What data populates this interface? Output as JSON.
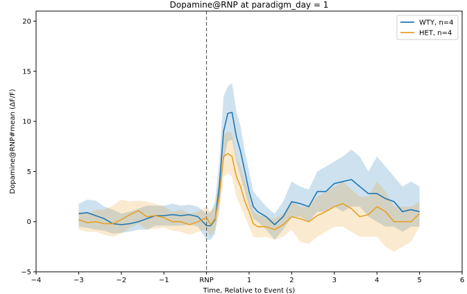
{
  "chart_data": {
    "type": "line",
    "title": "Dopamine@RNP at paradigm_day = 1",
    "xlabel": "Time, Relative to Event (s)",
    "ylabel": "Dopamine@RNP#mean (ΔF/F)",
    "xlim": [
      -4,
      6
    ],
    "ylim": [
      -5,
      21
    ],
    "xticks": [
      {
        "value": -4,
        "label": "−4"
      },
      {
        "value": -3,
        "label": "−3"
      },
      {
        "value": -2,
        "label": "−2"
      },
      {
        "value": -1,
        "label": "−1"
      },
      {
        "value": 0,
        "label": "RNP"
      },
      {
        "value": 1,
        "label": "1"
      },
      {
        "value": 2,
        "label": "2"
      },
      {
        "value": 3,
        "label": "3"
      },
      {
        "value": 4,
        "label": "4"
      },
      {
        "value": 5,
        "label": "5"
      },
      {
        "value": 6,
        "label": "6"
      }
    ],
    "yticks": [
      {
        "value": -5,
        "label": "−5"
      },
      {
        "value": 0,
        "label": "0"
      },
      {
        "value": 5,
        "label": "5"
      },
      {
        "value": 10,
        "label": "10"
      },
      {
        "value": 15,
        "label": "15"
      },
      {
        "value": 20,
        "label": "20"
      }
    ],
    "event_line": {
      "x": 0,
      "style": "dashed"
    },
    "grid": false,
    "legend_position": "top-right",
    "series": [
      {
        "name": "WTY, n=4",
        "color": "#1f77b4",
        "x": [
          -3.0,
          -2.8,
          -2.6,
          -2.4,
          -2.2,
          -2.0,
          -1.8,
          -1.6,
          -1.4,
          -1.2,
          -1.0,
          -0.8,
          -0.6,
          -0.4,
          -0.2,
          0.0,
          0.1,
          0.2,
          0.3,
          0.4,
          0.5,
          0.6,
          0.7,
          0.8,
          0.9,
          1.0,
          1.1,
          1.2,
          1.4,
          1.6,
          1.8,
          2.0,
          2.2,
          2.4,
          2.6,
          2.8,
          3.0,
          3.2,
          3.4,
          3.6,
          3.8,
          4.0,
          4.2,
          4.4,
          4.6,
          4.8,
          5.0
        ],
        "y": [
          0.8,
          0.9,
          0.6,
          0.3,
          -0.2,
          -0.3,
          -0.2,
          0.0,
          0.3,
          0.6,
          0.6,
          0.7,
          0.6,
          0.7,
          0.5,
          -0.4,
          -0.4,
          0.2,
          3.5,
          9.0,
          10.8,
          10.9,
          8.5,
          7.0,
          5.0,
          3.0,
          1.5,
          1.0,
          0.5,
          -0.3,
          0.5,
          2.0,
          1.8,
          1.5,
          3.0,
          3.0,
          3.8,
          4.0,
          4.2,
          3.5,
          2.8,
          2.8,
          2.3,
          2.0,
          1.0,
          1.2,
          1.0
        ],
        "ci_upper": [
          1.8,
          2.2,
          2.1,
          1.5,
          1.2,
          0.8,
          1.0,
          1.3,
          1.6,
          1.6,
          1.6,
          1.8,
          1.6,
          1.7,
          1.5,
          0.8,
          1.0,
          2.0,
          6.0,
          12.5,
          13.5,
          13.8,
          11.0,
          9.5,
          7.0,
          5.0,
          3.0,
          2.5,
          1.5,
          0.8,
          2.0,
          4.0,
          3.5,
          3.2,
          5.0,
          5.5,
          6.0,
          6.5,
          7.2,
          6.5,
          5.0,
          6.5,
          5.5,
          4.5,
          3.5,
          4.0,
          3.5
        ],
        "ci_lower": [
          -0.5,
          -0.6,
          -0.8,
          -0.9,
          -1.2,
          -1.1,
          -1.0,
          -0.8,
          -0.8,
          -0.4,
          -0.4,
          -0.4,
          -0.4,
          -0.3,
          -0.5,
          -1.8,
          -1.8,
          -1.2,
          1.5,
          6.0,
          8.0,
          8.2,
          6.0,
          4.5,
          3.0,
          1.5,
          0.3,
          0.0,
          -0.8,
          -1.8,
          -0.8,
          0.5,
          0.5,
          0.0,
          1.0,
          1.0,
          1.5,
          1.0,
          1.5,
          1.5,
          0.5,
          0.0,
          -0.5,
          -0.5,
          -1.0,
          -0.5,
          -0.5
        ]
      },
      {
        "name": "HET, n=4",
        "color": "#e6a025",
        "x": [
          -3.0,
          -2.8,
          -2.6,
          -2.4,
          -2.2,
          -2.0,
          -1.8,
          -1.6,
          -1.4,
          -1.2,
          -1.0,
          -0.8,
          -0.6,
          -0.4,
          -0.2,
          0.0,
          0.1,
          0.2,
          0.3,
          0.4,
          0.5,
          0.6,
          0.7,
          0.8,
          0.9,
          1.0,
          1.1,
          1.2,
          1.4,
          1.6,
          1.8,
          2.0,
          2.2,
          2.4,
          2.6,
          2.8,
          3.0,
          3.2,
          3.4,
          3.6,
          3.8,
          4.0,
          4.2,
          4.4,
          4.6,
          4.8,
          5.0
        ],
        "y": [
          0.2,
          -0.1,
          0.0,
          -0.2,
          -0.2,
          0.2,
          0.7,
          1.1,
          0.5,
          0.6,
          0.4,
          0.0,
          0.0,
          -0.3,
          0.0,
          0.4,
          -0.3,
          0.3,
          2.5,
          6.5,
          6.8,
          6.5,
          4.5,
          3.5,
          2.0,
          1.0,
          -0.2,
          -0.5,
          -0.5,
          -0.8,
          -0.3,
          0.5,
          0.3,
          0.0,
          0.6,
          1.0,
          1.5,
          1.8,
          1.3,
          0.5,
          0.7,
          1.5,
          1.0,
          0.0,
          0.0,
          0.0,
          0.8
        ],
        "ci_upper": [
          1.0,
          0.8,
          1.2,
          1.2,
          1.6,
          2.2,
          2.0,
          2.1,
          2.0,
          1.8,
          1.5,
          1.0,
          1.2,
          0.8,
          1.0,
          1.5,
          1.0,
          1.5,
          4.5,
          8.5,
          9.0,
          8.8,
          6.5,
          5.5,
          4.0,
          2.5,
          1.0,
          0.7,
          0.5,
          0.3,
          0.8,
          2.0,
          1.5,
          1.5,
          2.5,
          3.0,
          3.5,
          4.0,
          3.2,
          2.5,
          2.5,
          4.0,
          3.0,
          1.5,
          1.5,
          1.5,
          2.0
        ],
        "ci_lower": [
          -0.8,
          -1.0,
          -1.0,
          -1.3,
          -1.5,
          -1.2,
          -0.6,
          -0.2,
          -0.8,
          -0.7,
          -0.6,
          -0.9,
          -1.0,
          -1.3,
          -1.0,
          -0.8,
          -1.5,
          -0.8,
          0.8,
          4.5,
          4.8,
          4.5,
          2.5,
          1.5,
          0.5,
          -0.5,
          -1.5,
          -1.6,
          -1.5,
          -1.8,
          -1.5,
          -0.8,
          -2.0,
          -2.2,
          -1.5,
          -1.0,
          -0.5,
          -0.5,
          -1.0,
          -1.5,
          -1.5,
          -1.5,
          -2.5,
          -3.0,
          -2.5,
          -2.0,
          -0.5
        ]
      }
    ]
  }
}
